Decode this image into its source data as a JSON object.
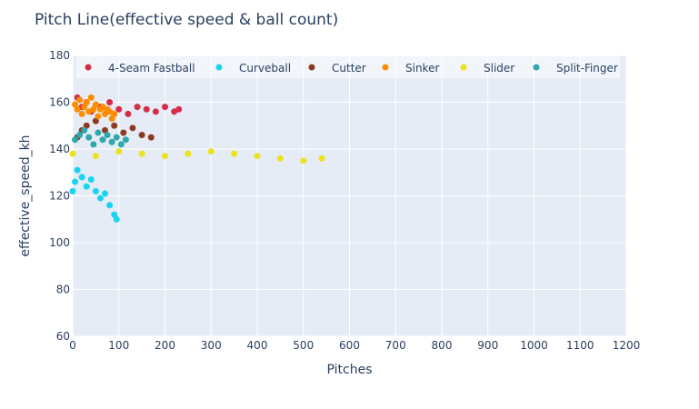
{
  "chart_data": {
    "type": "scatter",
    "title": "Pitch Line(effective speed & ball count)",
    "xlabel": "Pitches",
    "ylabel": "effective_speed_kh",
    "xlim": [
      0,
      1200
    ],
    "ylim": [
      60,
      180
    ],
    "x_ticks": [
      0,
      100,
      200,
      300,
      400,
      500,
      600,
      700,
      800,
      900,
      1000,
      1100,
      1200
    ],
    "y_ticks": [
      60,
      80,
      100,
      120,
      140,
      160,
      180
    ],
    "grid": true,
    "legend_position": "top",
    "plot_background": "#e5ecf6",
    "series": [
      {
        "name": "4-Seam Fastball",
        "color": "#d62c4a",
        "x": [
          10,
          20,
          30,
          40,
          60,
          80,
          100,
          120,
          140,
          160,
          180,
          200,
          220,
          230
        ],
        "y": [
          162,
          158,
          160,
          156,
          158,
          160,
          157,
          155,
          158,
          157,
          156,
          158,
          156,
          157
        ]
      },
      {
        "name": "Curveball",
        "color": "#19d3f3",
        "x": [
          0,
          5,
          10,
          20,
          30,
          40,
          50,
          60,
          70,
          80,
          90,
          95
        ],
        "y": [
          122,
          126,
          131,
          128,
          124,
          127,
          122,
          119,
          121,
          116,
          112,
          110
        ]
      },
      {
        "name": "Cutter",
        "color": "#8c3a24",
        "x": [
          10,
          20,
          30,
          50,
          70,
          90,
          110,
          130,
          150,
          170
        ],
        "y": [
          145,
          148,
          150,
          152,
          148,
          150,
          147,
          149,
          146,
          145
        ]
      },
      {
        "name": "Sinker",
        "color": "#ff8c00",
        "x": [
          5,
          10,
          15,
          20,
          25,
          30,
          35,
          40,
          45,
          50,
          55,
          60,
          65,
          70,
          75,
          80,
          85,
          90
        ],
        "y": [
          159,
          157,
          161,
          155,
          158,
          160,
          156,
          162,
          157,
          159,
          154,
          157,
          158,
          155,
          157,
          156,
          153,
          155
        ]
      },
      {
        "name": "Slider",
        "color": "#eae21c",
        "x": [
          0,
          50,
          100,
          150,
          200,
          250,
          300,
          350,
          400,
          450,
          500,
          540
        ],
        "y": [
          138,
          137,
          139,
          138,
          137,
          138,
          139,
          138,
          137,
          136,
          135,
          136
        ]
      },
      {
        "name": "Split-Finger",
        "color": "#2fa8ad",
        "x": [
          5,
          15,
          25,
          35,
          45,
          55,
          65,
          75,
          85,
          95,
          105,
          115
        ],
        "y": [
          144,
          146,
          148,
          145,
          142,
          147,
          144,
          146,
          143,
          145,
          142,
          144
        ]
      }
    ]
  }
}
